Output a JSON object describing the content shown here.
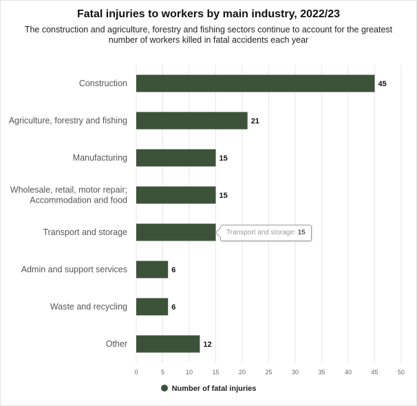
{
  "chart_data": {
    "type": "bar",
    "orientation": "horizontal",
    "title": "Fatal injuries to workers by main industry, 2022/23",
    "subtitle": "The construction and agriculture, forestry and fishing sectors continue to account for the greatest number of workers killed in fatal accidents each year",
    "categories": [
      [
        "Construction"
      ],
      [
        "Agriculture, forestry and fishing"
      ],
      [
        "Manufacturing"
      ],
      [
        "Wholesale, retail, motor repair;",
        "Accommodation and food"
      ],
      [
        "Transport and storage"
      ],
      [
        "Admin and support services"
      ],
      [
        "Waste and recycling"
      ],
      [
        "Other"
      ]
    ],
    "series": [
      {
        "name": "Number of fatal injuries",
        "values": [
          45,
          21,
          15,
          15,
          15,
          6,
          6,
          12
        ],
        "color": "#3b5238"
      }
    ],
    "xlim": [
      0,
      50
    ],
    "xticks": [
      0,
      5,
      10,
      15,
      20,
      25,
      30,
      35,
      40,
      45,
      50
    ],
    "grid": "vertical",
    "legend_position": "bottom-center",
    "tooltip": {
      "category": "Transport and storage",
      "label": "Transport and storage:",
      "value": "15"
    }
  }
}
